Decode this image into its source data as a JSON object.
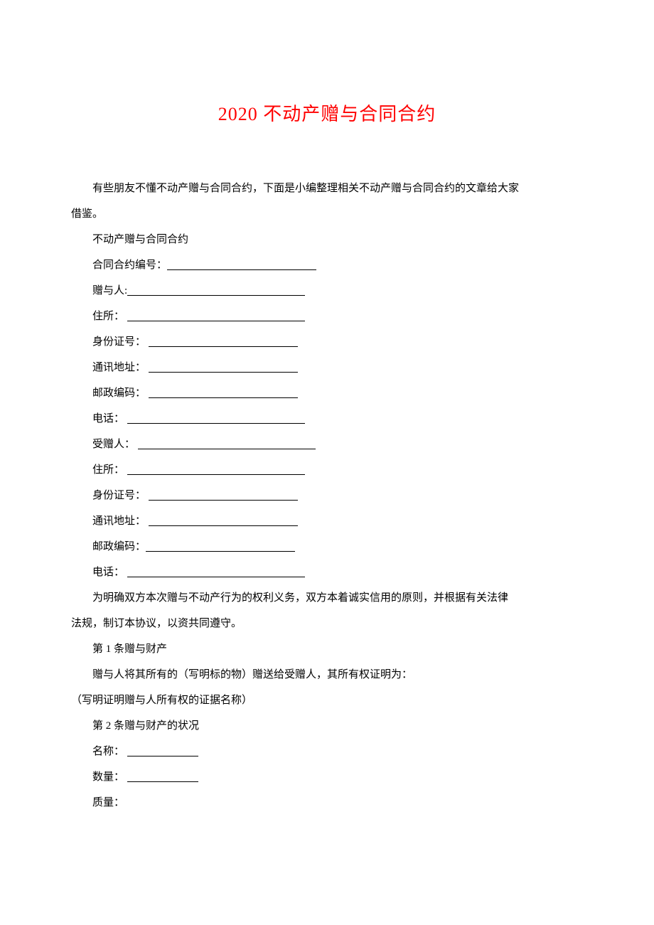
{
  "title": "2020 不动产赠与合同合约",
  "intro": "有些朋友不懂不动产赠与合同合约，下面是小编整理相关不动产赠与合同合约的文章给大家",
  "intro2": "借鉴。",
  "section_label": "不动产赠与合同合约",
  "fields": {
    "contract_no_label": "合同合约编号：",
    "donor_label": "赠与人:",
    "address1_label": "住所：",
    "id1_label": "身份证号：",
    "mail1_label": "通讯地址：",
    "zip1_label": "邮政编码：",
    "phone1_label": "电话：",
    "donee_label": "受赠人：",
    "address2_label": "住所：",
    "id2_label": "身份证号：",
    "mail2_label": "通讯地址：",
    "zip2_label": "邮政编码：",
    "phone2_label": "电话："
  },
  "para1a": "为明确双方本次赠与不动产行为的权利义务，双方本着诚实信用的原则，并根据有关法律",
  "para1b": "法规，制订本协议，以资共同遵守。",
  "art1_title": "第 1 条赠与财产",
  "art1_body": "赠与人将其所有的（写明标的物）赠送给受赠人，其所有权证明为：",
  "art1_body2": "（写明证明赠与人所有权的证据名称）",
  "art2_title": "第 2 条赠与财产的状况",
  "art2_name_label": "名称：",
  "art2_qty_label": "数量：",
  "art2_quality_label": "质量：",
  "style": {
    "underline_short": 100,
    "underline_mid": 210,
    "underline_long": 250,
    "title_color": "#ff0000",
    "text_color": "#000000",
    "background": "#ffffff",
    "title_fontsize": 26,
    "body_fontsize": 15,
    "line_height": 2.4
  }
}
